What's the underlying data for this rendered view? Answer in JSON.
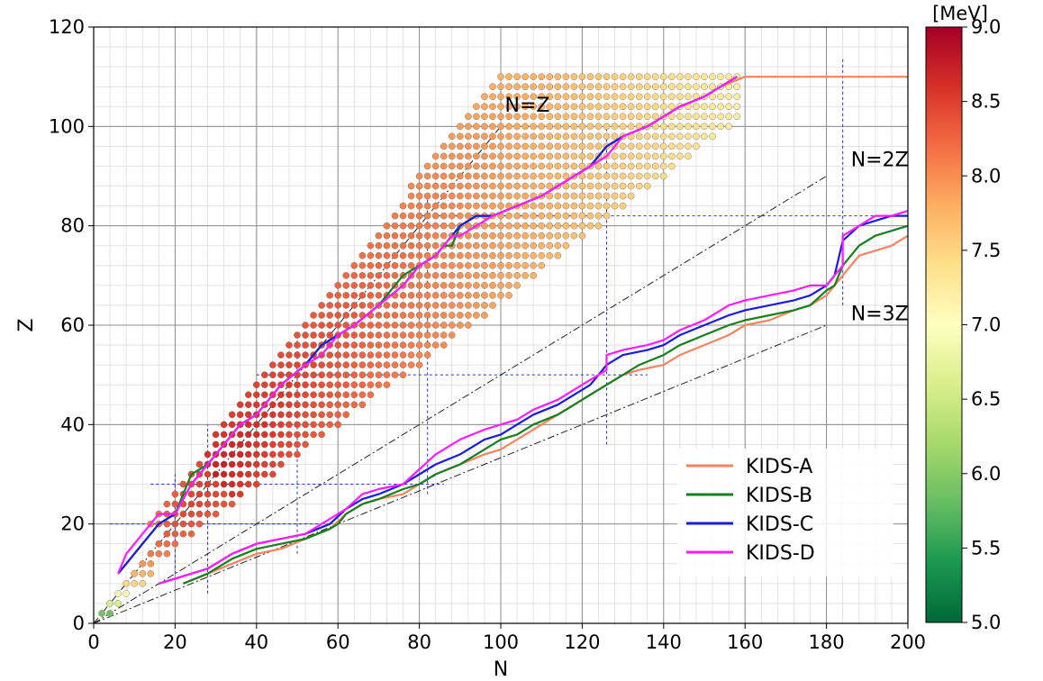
{
  "chart_data": {
    "type": "scatter",
    "title": "",
    "xlabel": "N",
    "ylabel": "Z",
    "xlim": [
      0,
      200
    ],
    "ylim": [
      0,
      120
    ],
    "xticks": [
      "0",
      "20",
      "40",
      "60",
      "80",
      "100",
      "120",
      "140",
      "160",
      "180",
      "200"
    ],
    "yticks": [
      "0",
      "20",
      "40",
      "60",
      "80",
      "100",
      "120"
    ],
    "grid": true,
    "legend_position": "lower-right",
    "colorbar": {
      "unit": "[MeV]",
      "min": 5.0,
      "max": 9.0,
      "ticks": [
        "5.0",
        "5.5",
        "6.0",
        "6.5",
        "7.0",
        "7.5",
        "8.0",
        "8.5",
        "9.0"
      ],
      "colormap": "RdYlGn_r"
    },
    "annotations": [
      {
        "text": "N=Z",
        "x": 101,
        "y": 103
      },
      {
        "text": "N=2Z",
        "x": 186,
        "y": 92
      },
      {
        "text": "N=3Z",
        "x": 186,
        "y": 61
      }
    ],
    "reference_lines": [
      {
        "label": "N=Z",
        "from": [
          0,
          0
        ],
        "to": [
          100,
          100
        ]
      },
      {
        "label": "N=2Z",
        "from": [
          0,
          0
        ],
        "to": [
          180,
          90
        ]
      },
      {
        "label": "N=3Z",
        "from": [
          0,
          0
        ],
        "to": [
          180,
          60
        ]
      }
    ],
    "magic_numbers": [
      20,
      28,
      50,
      82,
      126,
      184
    ],
    "series": [
      {
        "name": "KIDS-A",
        "color": "#f4845f",
        "segments": [
          {
            "x": [
              6,
              8,
              12,
              16,
              20,
              24,
              28,
              36,
              40,
              46,
              52,
              56,
              60,
              64,
              70,
              76,
              80,
              84,
              86,
              88,
              90,
              94,
              98,
              104,
              110,
              114,
              118,
              122,
              126,
              130,
              136,
              140,
              144,
              150,
              154,
              160,
              164,
              170,
              176,
              180,
              184,
              186,
              188,
              192,
              196,
              200
            ],
            "y": [
              10,
              12,
              16,
              20,
              22,
              28,
              32,
              40,
              42,
              48,
              52,
              56,
              58,
              60,
              64,
              68,
              72,
              74,
              76,
              76,
              80,
              82,
              82,
              84,
              86,
              88,
              90,
              92,
              96,
              98,
              100,
              102,
              104,
              106,
              108,
              110,
              110,
              110,
              110,
              110,
              110,
              110,
              110,
              110,
              110,
              110
            ]
          },
          {
            "x": [
              22,
              28,
              34,
              40,
              46,
              52,
              58,
              62,
              66,
              70,
              76,
              80,
              84,
              90,
              96,
              100,
              104,
              108,
              114,
              118,
              122,
              126,
              130,
              134,
              140,
              144,
              150,
              156,
              160,
              166,
              172,
              176,
              180,
              182,
              184,
              188,
              192,
              196,
              200
            ],
            "y": [
              8,
              10,
              12,
              14,
              15,
              17,
              19,
              22,
              24,
              25,
              26,
              28,
              30,
              32,
              34,
              35,
              37,
              39,
              42,
              44,
              46,
              48,
              50,
              51,
              52,
              54,
              56,
              58,
              60,
              61,
              63,
              64,
              66,
              68,
              70,
              74,
              75,
              76,
              78
            ]
          }
        ]
      },
      {
        "name": "KIDS-B",
        "color": "#14801e",
        "segments": [
          {
            "x": [
              6,
              8,
              12,
              16,
              20,
              24,
              28,
              36,
              40,
              46,
              52,
              56,
              60,
              64,
              70,
              76,
              80,
              84,
              86,
              88,
              90,
              94,
              98,
              104,
              110,
              114,
              118,
              122,
              126,
              130,
              136,
              140,
              144,
              150,
              154,
              158
            ],
            "y": [
              10,
              12,
              16,
              20,
              22,
              30,
              32,
              40,
              42,
              48,
              52,
              56,
              58,
              60,
              64,
              70,
              72,
              74,
              76,
              76,
              80,
              82,
              82,
              84,
              86,
              88,
              90,
              92,
              96,
              98,
              100,
              102,
              104,
              106,
              108,
              110
            ]
          },
          {
            "x": [
              22,
              28,
              34,
              40,
              46,
              52,
              58,
              60,
              62,
              66,
              70,
              76,
              80,
              84,
              90,
              96,
              100,
              104,
              108,
              114,
              118,
              122,
              126,
              130,
              134,
              140,
              144,
              150,
              156,
              160,
              166,
              172,
              176,
              180,
              182,
              184,
              188,
              192,
              196,
              200
            ],
            "y": [
              8,
              10,
              13,
              15,
              16,
              17,
              19,
              20,
              22,
              24,
              25,
              27,
              28,
              30,
              32,
              35,
              37,
              38,
              40,
              42,
              44,
              46,
              48,
              50,
              52,
              54,
              56,
              58,
              60,
              61,
              62,
              63,
              64,
              67,
              68,
              72,
              76,
              78,
              79,
              80
            ]
          }
        ]
      },
      {
        "name": "KIDS-C",
        "color": "#1a1ae0",
        "segments": [
          {
            "x": [
              6,
              8,
              12,
              16,
              20,
              24,
              28,
              36,
              40,
              46,
              52,
              56,
              60,
              64,
              70,
              76,
              80,
              84,
              86,
              88,
              90,
              94,
              98,
              104,
              110,
              114,
              118,
              122,
              126,
              130,
              136,
              140,
              144,
              150,
              154,
              158
            ],
            "y": [
              10,
              12,
              16,
              20,
              22,
              28,
              32,
              40,
              42,
              48,
              52,
              56,
              58,
              60,
              64,
              68,
              72,
              74,
              76,
              78,
              80,
              82,
              82,
              84,
              86,
              88,
              90,
              92,
              96,
              98,
              100,
              102,
              104,
              106,
              108,
              110
            ]
          },
          {
            "x": [
              16,
              20,
              24,
              28,
              34,
              40,
              46,
              52,
              58,
              62,
              66,
              70,
              76,
              80,
              84,
              90,
              96,
              100,
              104,
              108,
              114,
              118,
              122,
              124,
              126,
              130,
              136,
              140,
              144,
              150,
              156,
              160,
              166,
              172,
              176,
              180,
              182,
              184,
              188,
              192,
              196,
              200
            ],
            "y": [
              8,
              9,
              10,
              11,
              14,
              16,
              17,
              18,
              20,
              23,
              25,
              26,
              28,
              30,
              32,
              34,
              37,
              38,
              40,
              42,
              44,
              46,
              48,
              50,
              52,
              54,
              55,
              56,
              58,
              60,
              62,
              63,
              64,
              65,
              66,
              68,
              70,
              77,
              80,
              81,
              82,
              82
            ]
          }
        ]
      },
      {
        "name": "KIDS-D",
        "color": "#ff1aff",
        "segments": [
          {
            "x": [
              6,
              8,
              12,
              16,
              20,
              24,
              28,
              36,
              40,
              46,
              52,
              56,
              60,
              64,
              70,
              76,
              80,
              84,
              86,
              88,
              90,
              94,
              98,
              104,
              110,
              114,
              118,
              122,
              126,
              130,
              136,
              140,
              144,
              150,
              154,
              158
            ],
            "y": [
              10,
              14,
              18,
              22,
              22,
              28,
              32,
              40,
              42,
              48,
              52,
              54,
              58,
              60,
              64,
              68,
              72,
              74,
              76,
              78,
              78,
              80,
              82,
              84,
              86,
              88,
              90,
              92,
              94,
              98,
              100,
              102,
              104,
              106,
              108,
              110
            ]
          },
          {
            "x": [
              16,
              20,
              24,
              28,
              34,
              40,
              46,
              52,
              58,
              62,
              66,
              70,
              76,
              80,
              84,
              90,
              96,
              100,
              104,
              108,
              114,
              118,
              122,
              124,
              126,
              126,
              130,
              136,
              140,
              144,
              150,
              156,
              160,
              166,
              172,
              176,
              180,
              182,
              184,
              184,
              188,
              192,
              196,
              200
            ],
            "y": [
              8,
              9,
              10,
              11,
              14,
              16,
              17,
              18,
              21,
              23,
              26,
              27,
              28,
              31,
              34,
              37,
              39,
              40,
              41,
              43,
              45,
              47,
              49,
              50,
              51,
              54,
              55,
              56,
              57,
              59,
              61,
              64,
              65,
              66,
              67,
              68,
              68,
              70,
              72,
              78,
              80,
              82,
              82,
              83
            ]
          }
        ]
      }
    ],
    "nuclei": {
      "description_ranges": [
        {
          "z_from": 2,
          "z_to": 110,
          "z_step": 2
        }
      ]
    }
  }
}
